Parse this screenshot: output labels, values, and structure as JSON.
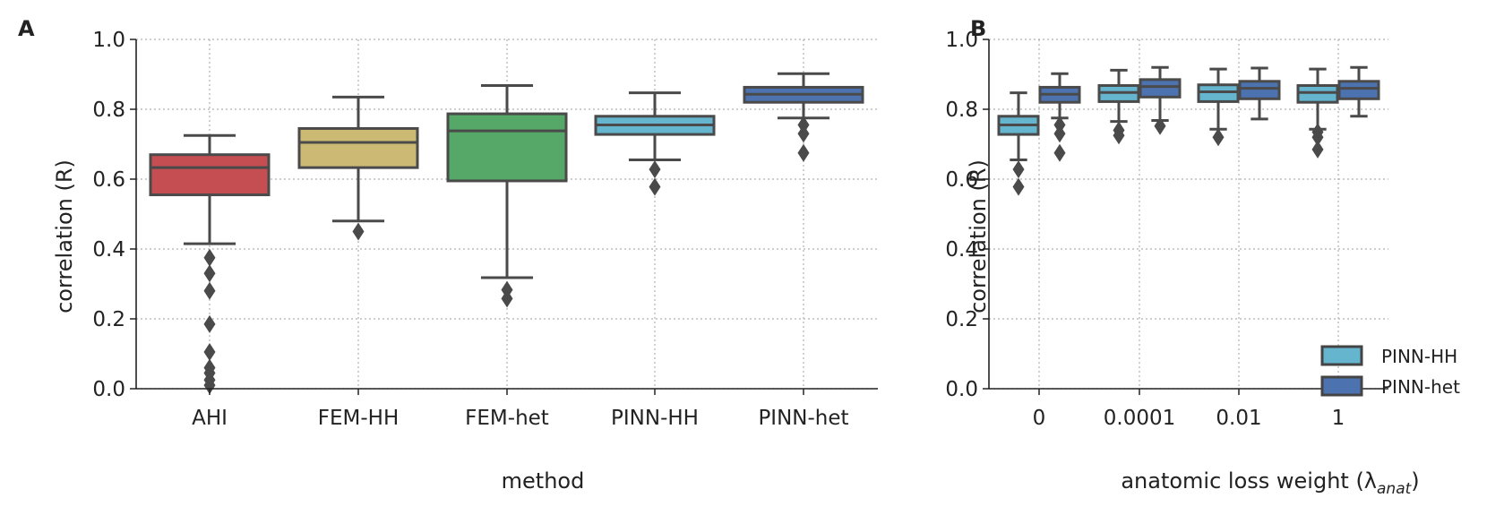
{
  "chart_data": [
    {
      "panel_label": "A",
      "type": "box",
      "xlabel": "method",
      "ylabel": "correlation (R)",
      "ylim": [
        0,
        1.0
      ],
      "yticks": [
        "0.0",
        "0.2",
        "0.4",
        "0.6",
        "0.8",
        "1.0"
      ],
      "grid": true,
      "categories": [
        "AHI",
        "FEM-HH",
        "FEM-het",
        "PINN-HH",
        "PINN-het"
      ],
      "boxes": [
        {
          "category": "AHI",
          "color": "#c44e52",
          "whisker_low": 0.415,
          "q1": 0.555,
          "median": 0.633,
          "q3": 0.67,
          "whisker_high": 0.725,
          "outliers": [
            0.375,
            0.33,
            0.28,
            0.185,
            0.105,
            0.06,
            0.045,
            0.025,
            0.01
          ]
        },
        {
          "category": "FEM-HH",
          "color": "#ccb974",
          "whisker_low": 0.48,
          "q1": 0.633,
          "median": 0.705,
          "q3": 0.745,
          "whisker_high": 0.835,
          "outliers": [
            0.45
          ]
        },
        {
          "category": "FEM-het",
          "color": "#55a868",
          "whisker_low": 0.318,
          "q1": 0.595,
          "median": 0.738,
          "q3": 0.787,
          "whisker_high": 0.868,
          "outliers": [
            0.283,
            0.258
          ]
        },
        {
          "category": "PINN-HH",
          "color": "#64b5cd",
          "whisker_low": 0.655,
          "q1": 0.728,
          "median": 0.755,
          "q3": 0.78,
          "whisker_high": 0.847,
          "outliers": [
            0.628,
            0.578
          ]
        },
        {
          "category": "PINN-het",
          "color": "#4c72b0",
          "whisker_low": 0.775,
          "q1": 0.82,
          "median": 0.843,
          "q3": 0.863,
          "whisker_high": 0.902,
          "outliers": [
            0.755,
            0.73,
            0.675
          ]
        }
      ]
    },
    {
      "panel_label": "B",
      "type": "box",
      "xlabel": "anatomic loss weight (λ",
      "xlabel_sub": "anat",
      "xlabel_end": ")",
      "ylabel": "correlation (R)",
      "ylim": [
        0,
        1.0
      ],
      "yticks": [
        "0.0",
        "0.2",
        "0.4",
        "0.6",
        "0.8",
        "1.0"
      ],
      "grid": true,
      "categories": [
        "0",
        "0.0001",
        "0.01",
        "1"
      ],
      "legend_position": "lower-right",
      "series": [
        {
          "name": "PINN-HH",
          "color": "#64b5cd",
          "boxes": [
            {
              "whisker_low": 0.655,
              "q1": 0.728,
              "median": 0.755,
              "q3": 0.78,
              "whisker_high": 0.847,
              "outliers": [
                0.628,
                0.578
              ]
            },
            {
              "whisker_low": 0.765,
              "q1": 0.822,
              "median": 0.848,
              "q3": 0.868,
              "whisker_high": 0.912,
              "outliers": [
                0.74,
                0.725
              ]
            },
            {
              "whisker_low": 0.743,
              "q1": 0.822,
              "median": 0.85,
              "q3": 0.87,
              "whisker_high": 0.915,
              "outliers": [
                0.72
              ]
            },
            {
              "whisker_low": 0.743,
              "q1": 0.82,
              "median": 0.848,
              "q3": 0.868,
              "whisker_high": 0.915,
              "outliers": [
                0.735,
                0.72,
                0.685
              ]
            }
          ]
        },
        {
          "name": "PINN-het",
          "color": "#4c72b0",
          "boxes": [
            {
              "whisker_low": 0.775,
              "q1": 0.82,
              "median": 0.843,
              "q3": 0.863,
              "whisker_high": 0.902,
              "outliers": [
                0.755,
                0.73,
                0.675
              ]
            },
            {
              "whisker_low": 0.768,
              "q1": 0.835,
              "median": 0.865,
              "q3": 0.885,
              "whisker_high": 0.92,
              "outliers": [
                0.752
              ]
            },
            {
              "whisker_low": 0.772,
              "q1": 0.83,
              "median": 0.86,
              "q3": 0.88,
              "whisker_high": 0.918,
              "outliers": []
            },
            {
              "whisker_low": 0.78,
              "q1": 0.83,
              "median": 0.86,
              "q3": 0.88,
              "whisker_high": 0.92,
              "outliers": []
            }
          ]
        }
      ]
    }
  ]
}
